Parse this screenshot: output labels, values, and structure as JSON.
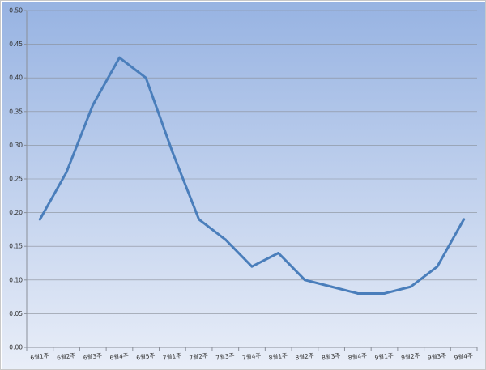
{
  "chart_data": {
    "type": "line",
    "title": "",
    "xlabel": "",
    "ylabel": "",
    "ylim": [
      0,
      0.5
    ],
    "ytick_step": 0.05,
    "grid": true,
    "legend": "none",
    "categories": [
      "6월1주",
      "6월2주",
      "6월3주",
      "6월4주",
      "6월5주",
      "7월1주",
      "7월2주",
      "7월3주",
      "7월4주",
      "8월1주",
      "8월2주",
      "8월3주",
      "8월4주",
      "9월1주",
      "9월2주",
      "9월3주",
      "9월4주"
    ],
    "values": [
      0.19,
      0.26,
      0.36,
      0.43,
      0.4,
      0.29,
      0.19,
      0.16,
      0.12,
      0.14,
      0.1,
      0.09,
      0.08,
      0.08,
      0.09,
      0.12,
      0.19
    ],
    "colors": {
      "line": "#4a7ebb",
      "bg_top": "#97b3e2",
      "bg_bottom": "#e9eef8",
      "grid": "#8a8f99"
    }
  }
}
